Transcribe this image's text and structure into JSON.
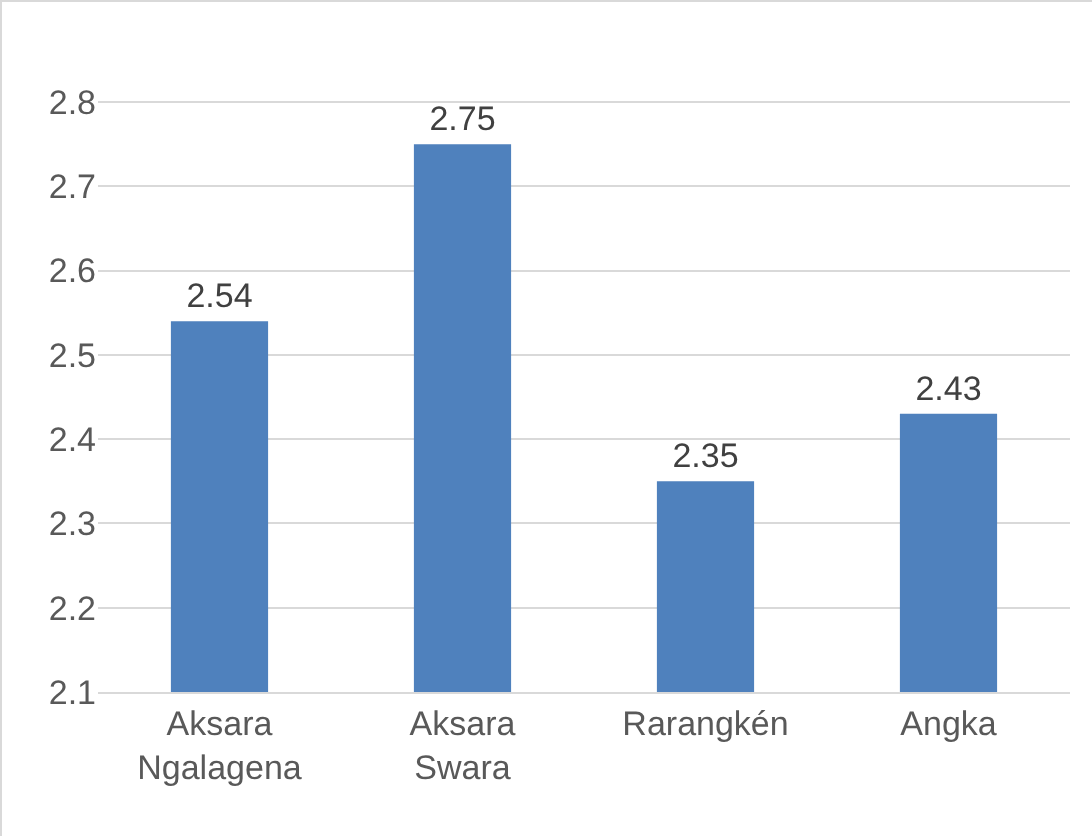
{
  "chart_data": {
    "type": "bar",
    "categories": [
      "Aksara Ngalagena",
      "Aksara Swara",
      "Rarangkén",
      "Angka"
    ],
    "values": [
      2.54,
      2.75,
      2.35,
      2.43
    ],
    "color": "#4f81bd",
    "ylim": [
      2.1,
      2.8
    ],
    "yticks": [
      2.1,
      2.2,
      2.3,
      2.4,
      2.5,
      2.6,
      2.7,
      2.8
    ],
    "grid": "y",
    "data_labels": true
  }
}
